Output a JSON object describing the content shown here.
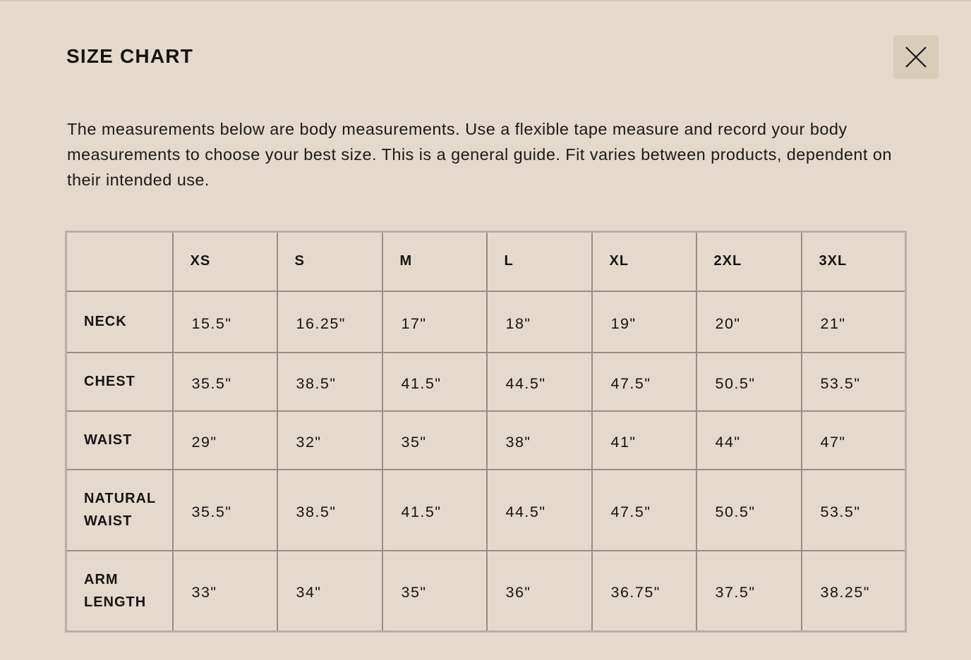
{
  "title": "SIZE CHART",
  "close_icon": "close-x-icon",
  "description": "The measurements below are body measurements. Use a flexible tape measure and record your body measurements to choose your best size. This is a general guide. Fit varies between products, dependent on their intended use.",
  "colors": {
    "background": "#e4dacb",
    "close_button": "#d8cdb9",
    "grid": "#978e82",
    "text": "#141410"
  },
  "table": {
    "headers": [
      "",
      "XS",
      "S",
      "M",
      "L",
      "XL",
      "2XL",
      "3XL"
    ],
    "rows": [
      {
        "label": [
          "NECK"
        ],
        "values": [
          "15.5\"",
          "16.25\"",
          "17\"",
          "18\"",
          "19\"",
          "20\"",
          "21\""
        ]
      },
      {
        "label": [
          "CHEST"
        ],
        "values": [
          "35.5\"",
          "38.5\"",
          "41.5\"",
          "44.5\"",
          "47.5\"",
          "50.5\"",
          "53.5\""
        ]
      },
      {
        "label": [
          "WAIST"
        ],
        "values": [
          "29\"",
          "32\"",
          "35\"",
          "38\"",
          "41\"",
          "44\"",
          "47\""
        ]
      },
      {
        "label": [
          "NATURAL",
          "WAIST"
        ],
        "values": [
          "35.5\"",
          "38.5\"",
          "41.5\"",
          "44.5\"",
          "47.5\"",
          "50.5\"",
          "53.5\""
        ]
      },
      {
        "label": [
          "ARM",
          "LENGTH"
        ],
        "values": [
          "33\"",
          "34\"",
          "35\"",
          "36\"",
          "36.75\"",
          "37.5\"",
          "38.25\""
        ]
      }
    ]
  }
}
